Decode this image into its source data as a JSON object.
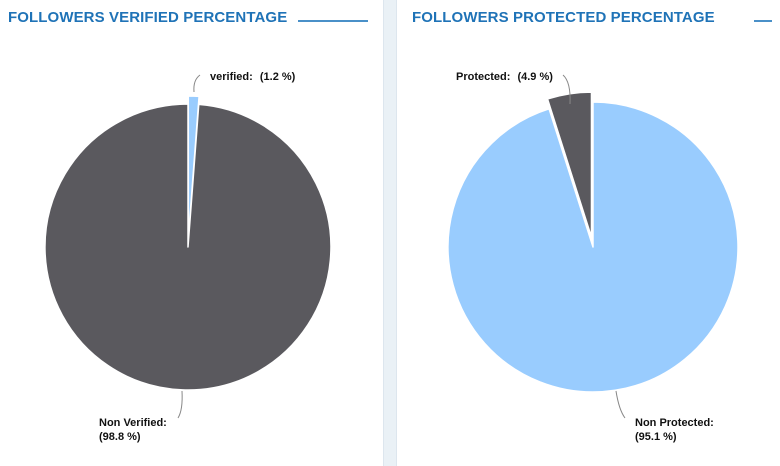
{
  "colors": {
    "title": "#1f73b7",
    "rule": "#4a90c8",
    "dark": "#5a595e",
    "light": "#99ccfe",
    "leader": "#888888"
  },
  "chart_data": [
    {
      "type": "pie",
      "title": "FOLLOWERS VERIFIED PERCENTAGE",
      "start_angle_deg": 0,
      "slices": [
        {
          "name": "verified",
          "value": 1.2,
          "label_name": "verified:",
          "label_value": "(1.2 %)",
          "color_key": "light",
          "exploded": true
        },
        {
          "name": "non-verified",
          "value": 98.8,
          "label_name": "Non Verified:",
          "label_value": "(98.8 %)",
          "color_key": "dark",
          "exploded": false
        }
      ]
    },
    {
      "type": "pie",
      "title": "FOLLOWERS PROTECTED PERCENTAGE",
      "start_angle_deg": 0,
      "slices": [
        {
          "name": "non-protected",
          "value": 95.1,
          "label_name": "Non Protected:",
          "label_value": "(95.1 %)",
          "color_key": "light",
          "exploded": false
        },
        {
          "name": "protected",
          "value": 4.9,
          "label_name": "Protected:",
          "label_value": "(4.9 %)",
          "color_key": "dark",
          "exploded": true
        }
      ]
    }
  ]
}
